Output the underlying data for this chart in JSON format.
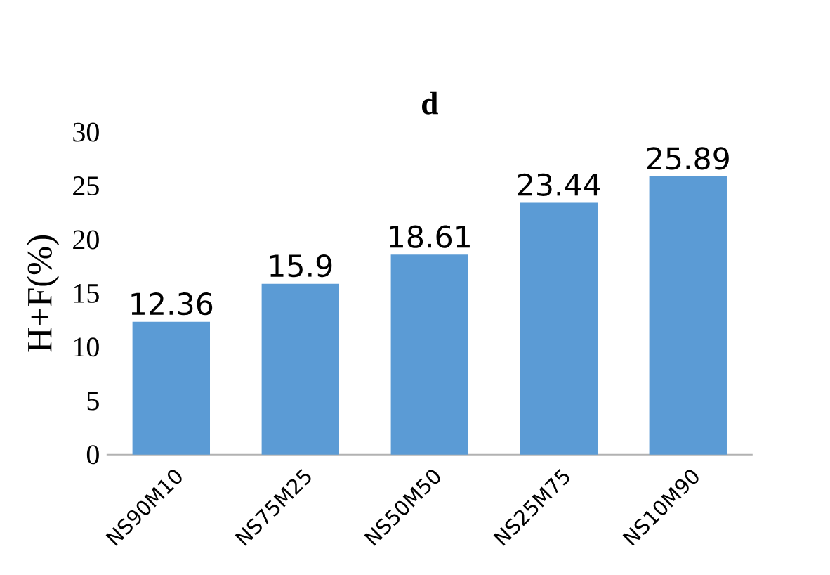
{
  "chart_data": {
    "type": "bar",
    "title": "d",
    "ylabel": "H+F(%)",
    "categories": [
      "NS90M10",
      "NS75M25",
      "NS50M50",
      "NS25M75",
      "NS10M90"
    ],
    "values": [
      12.36,
      15.9,
      18.61,
      23.44,
      25.89
    ],
    "color": "#5b9bd5",
    "ylim": [
      0,
      30
    ],
    "yticks": [
      0,
      5,
      10,
      15,
      20,
      25,
      30
    ],
    "grid": false,
    "data_labels": true
  }
}
